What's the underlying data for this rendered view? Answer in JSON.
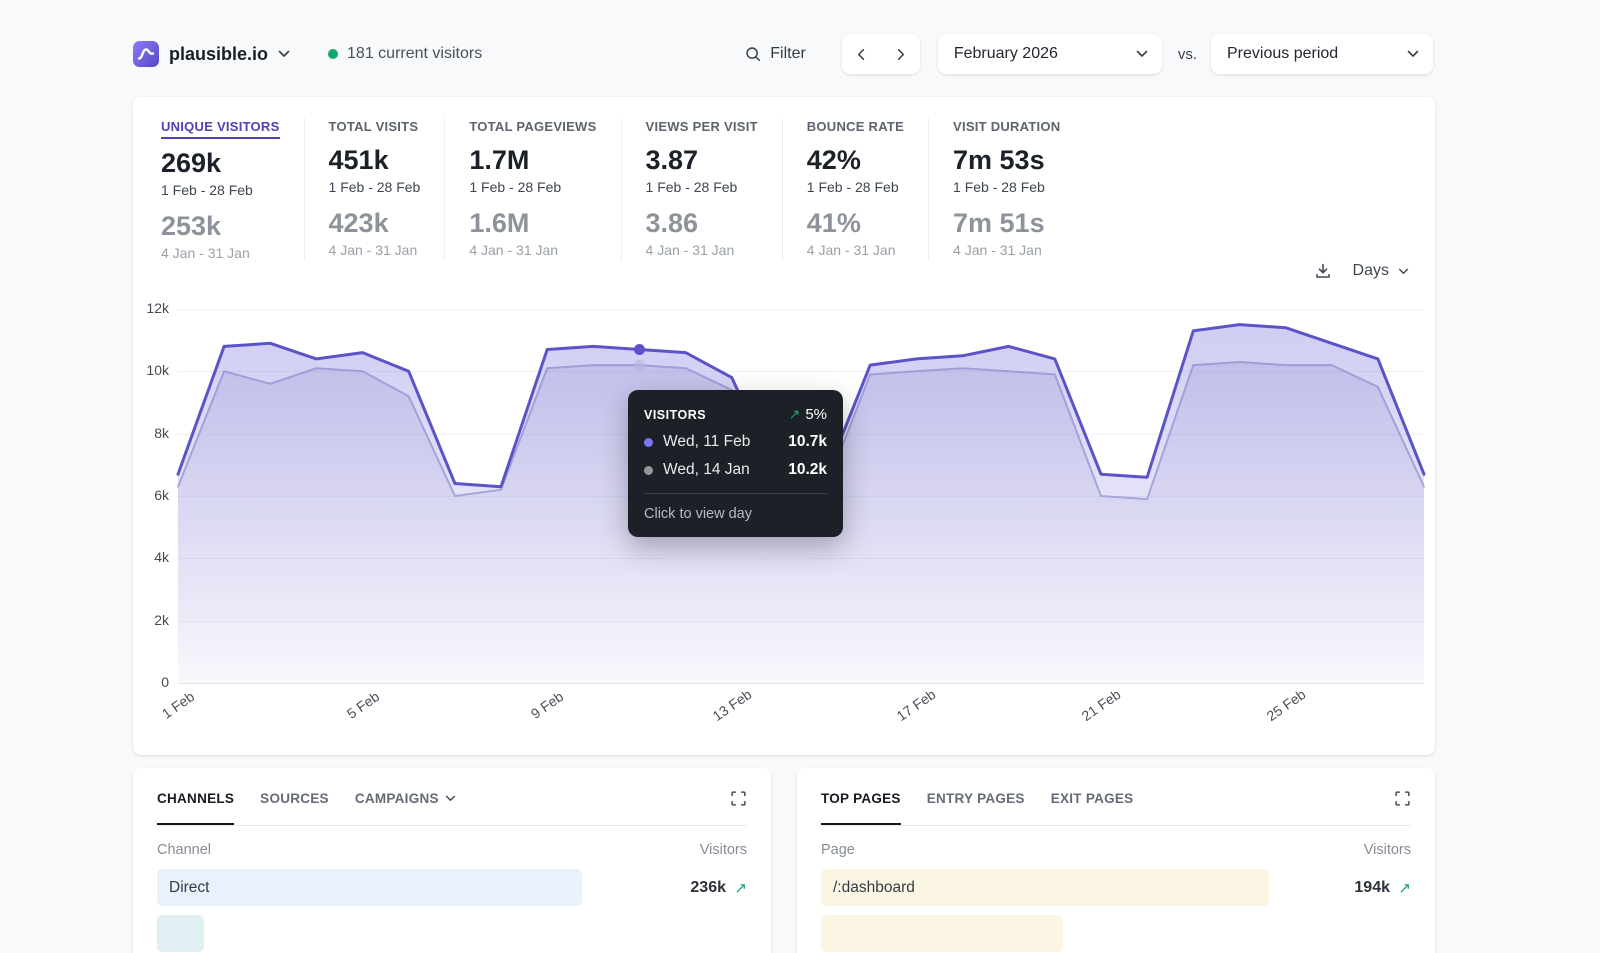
{
  "colors": {
    "accent": "#4e42b4",
    "positive": "#12a971",
    "line_current": "#5b54c9",
    "line_previous": "#b6b4da",
    "tooltip_dot_current": "#7b76f2",
    "tooltip_dot_previous": "#95969b",
    "bar_blue": "#e9f2fc",
    "bar_cream": "#fbf5e4"
  },
  "header": {
    "site": "plausible.io",
    "live": "181 current visitors",
    "filter_label": "Filter",
    "date_range": "February 2026",
    "vs_label": "vs.",
    "comparison": "Previous period"
  },
  "stats": [
    {
      "label": "UNIQUE VISITORS",
      "value": "269k",
      "period": "1 Feb - 28 Feb",
      "prev_value": "253k",
      "prev_period": "4 Jan - 31 Jan",
      "active": true
    },
    {
      "label": "TOTAL VISITS",
      "value": "451k",
      "period": "1 Feb - 28 Feb",
      "prev_value": "423k",
      "prev_period": "4 Jan - 31 Jan",
      "active": false
    },
    {
      "label": "TOTAL PAGEVIEWS",
      "value": "1.7M",
      "period": "1 Feb - 28 Feb",
      "prev_value": "1.6M",
      "prev_period": "4 Jan - 31 Jan",
      "active": false
    },
    {
      "label": "VIEWS PER VISIT",
      "value": "3.87",
      "period": "1 Feb - 28 Feb",
      "prev_value": "3.86",
      "prev_period": "4 Jan - 31 Jan",
      "active": false
    },
    {
      "label": "BOUNCE RATE",
      "value": "42%",
      "period": "1 Feb - 28 Feb",
      "prev_value": "41%",
      "prev_period": "4 Jan - 31 Jan",
      "active": false
    },
    {
      "label": "VISIT DURATION",
      "value": "7m 53s",
      "period": "1 Feb - 28 Feb",
      "prev_value": "7m 51s",
      "prev_period": "4 Jan - 31 Jan",
      "active": false
    }
  ],
  "chart": {
    "interval_label": "Days",
    "y_ticks": [
      "0",
      "2k",
      "4k",
      "6k",
      "8k",
      "10k",
      "12k"
    ],
    "x_ticks": [
      {
        "day": 1,
        "label": "1 Feb"
      },
      {
        "day": 5,
        "label": "5 Feb"
      },
      {
        "day": 9,
        "label": "9 Feb"
      },
      {
        "day": 13,
        "label": "13 Feb"
      },
      {
        "day": 17,
        "label": "17 Feb"
      },
      {
        "day": 21,
        "label": "21 Feb"
      },
      {
        "day": 25,
        "label": "25 Feb"
      }
    ]
  },
  "chart_data": {
    "type": "area",
    "title": "Unique visitors by day, current vs previous period",
    "x": [
      "1 Feb",
      "2 Feb",
      "3 Feb",
      "4 Feb",
      "5 Feb",
      "6 Feb",
      "7 Feb",
      "8 Feb",
      "9 Feb",
      "10 Feb",
      "11 Feb",
      "12 Feb",
      "13 Feb",
      "14 Feb",
      "15 Feb",
      "16 Feb",
      "17 Feb",
      "18 Feb",
      "19 Feb",
      "20 Feb",
      "21 Feb",
      "22 Feb",
      "23 Feb",
      "24 Feb",
      "25 Feb",
      "26 Feb",
      "27 Feb",
      "28 Feb"
    ],
    "ylim": [
      0,
      12000
    ],
    "grid": "horizontal",
    "legend_position": "none",
    "marker_index": 10,
    "series": [
      {
        "name": "1 Feb - 28 Feb (current)",
        "color": "#5b54c9",
        "values": [
          6700,
          10800,
          10900,
          10400,
          10600,
          10000,
          6400,
          6300,
          10700,
          10800,
          10700,
          10600,
          9800,
          6600,
          6500,
          10200,
          10400,
          10500,
          10800,
          10400,
          6700,
          6600,
          11300,
          11500,
          11400,
          10900,
          10400,
          6700
        ]
      },
      {
        "name": "4 Jan - 31 Jan (previous)",
        "color": "#b6b4da",
        "values": [
          6300,
          10000,
          9600,
          10100,
          10000,
          9200,
          6000,
          6200,
          10100,
          10200,
          10200,
          10100,
          9400,
          6300,
          6100,
          9900,
          10000,
          10100,
          10000,
          9900,
          6000,
          5900,
          10200,
          10300,
          10200,
          10200,
          9500,
          6300
        ]
      }
    ]
  },
  "tooltip": {
    "title": "VISITORS",
    "change": "5%",
    "rows": [
      {
        "date": "Wed, 11 Feb",
        "value": "10.7k",
        "color": "#7b76f2"
      },
      {
        "date": "Wed, 14 Jan",
        "value": "10.2k",
        "color": "#95969b"
      }
    ],
    "footer": "Click to view day"
  },
  "panels": {
    "left": {
      "tabs": [
        {
          "label": "CHANNELS",
          "active": true
        },
        {
          "label": "SOURCES",
          "active": false
        },
        {
          "label": "CAMPAIGNS",
          "active": false,
          "chevron": true
        }
      ],
      "columns": [
        "Channel",
        "Visitors"
      ],
      "rows": [
        {
          "label": "Direct",
          "value": "236k",
          "bar_color": "#e9f2fc",
          "bar_width": "72%"
        }
      ],
      "partial_row": {
        "bar_color": "#e0f0f2",
        "bar_width": "8%"
      }
    },
    "right": {
      "tabs": [
        {
          "label": "TOP PAGES",
          "active": true
        },
        {
          "label": "ENTRY PAGES",
          "active": false
        },
        {
          "label": "EXIT PAGES",
          "active": false
        }
      ],
      "columns": [
        "Page",
        "Visitors"
      ],
      "rows": [
        {
          "label": "/:dashboard",
          "value": "194k",
          "bar_color": "#fbf5e4",
          "bar_width": "76%"
        }
      ],
      "partial_row": {
        "bar_color": "#fbf5e4",
        "bar_width": "41%"
      }
    }
  }
}
